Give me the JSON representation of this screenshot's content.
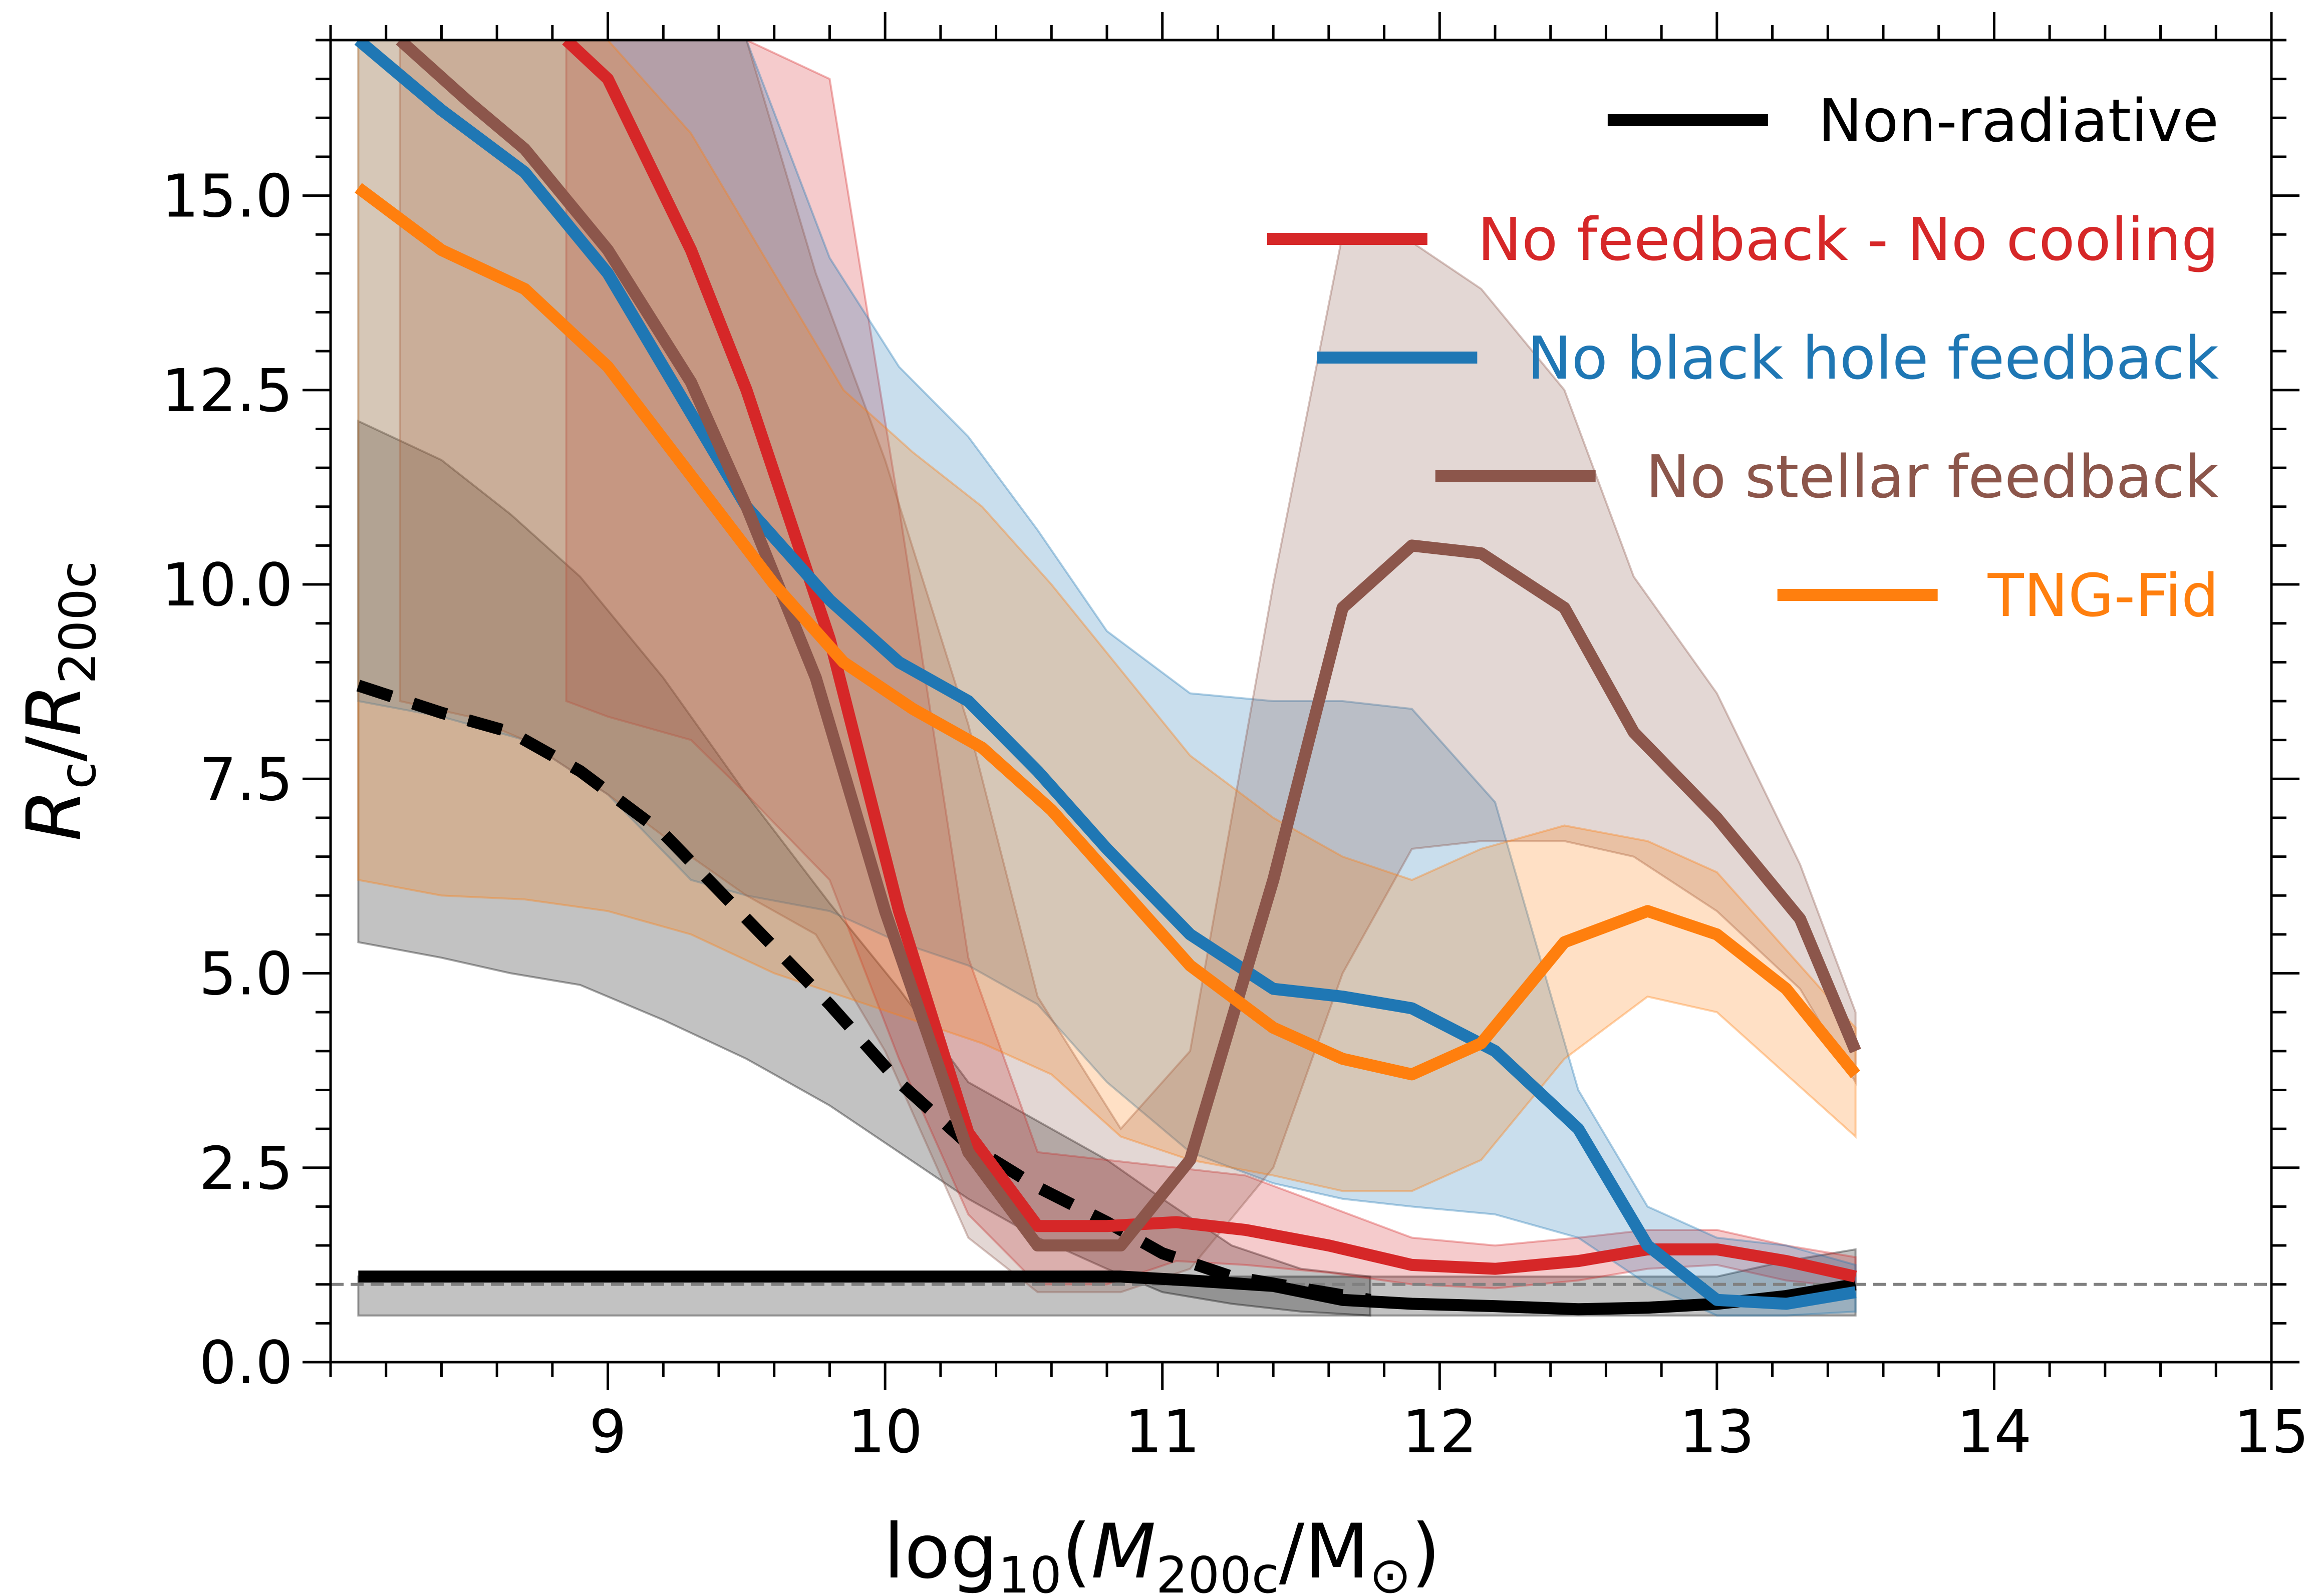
{
  "chart_data": {
    "type": "line",
    "xlabel": {
      "prefix": "log",
      "sub1": "10",
      "mid": "(",
      "var": "M",
      "sub2": "200c",
      "slash": "/M",
      "sub3": "⊙",
      "close": ")"
    },
    "ylabel": {
      "var1": "R",
      "sub1": "c",
      "slash": "/",
      "var2": "R",
      "sub2": "200c"
    },
    "xlim": [
      8.0,
      15.0
    ],
    "ylim": [
      0,
      17
    ],
    "xticks": [
      9,
      10,
      11,
      12,
      13,
      14,
      15
    ],
    "xtick_labels": [
      "9",
      "10",
      "11",
      "12",
      "13",
      "14",
      "15"
    ],
    "yticks": [
      0,
      2.5,
      5,
      7.5,
      10,
      12.5,
      15
    ],
    "ytick_labels": [
      "0.0",
      "2.5",
      "5.0",
      "7.5",
      "10.0",
      "12.5",
      "15.0"
    ],
    "reference_line": {
      "y": 1.0,
      "style": "dashed",
      "color": "#808080"
    },
    "legend_position": "top-right",
    "legend": [
      {
        "label": "Non-radiative",
        "color": "#000000"
      },
      {
        "label": "No feedback - No cooling",
        "color": "#d62728"
      },
      {
        "label": "No black hole feedback",
        "color": "#1f77b4"
      },
      {
        "label": "No stellar feedback",
        "color": "#8c564b"
      },
      {
        "label": "TNG-Fid",
        "color": "#ff7f0e"
      }
    ],
    "series": [
      {
        "color": "#000000",
        "x": [
          8.1,
          10.85,
          11.1,
          11.4,
          11.65,
          11.9,
          12.2,
          12.5,
          12.75,
          13.0,
          13.25,
          13.5
        ],
        "y": [
          1.1,
          1.1,
          1.05,
          0.98,
          0.8,
          0.75,
          0.72,
          0.68,
          0.7,
          0.75,
          0.85,
          1.0
        ],
        "lower": [
          0.6,
          0.6,
          0.6,
          0.6,
          0.6,
          0.6,
          0.6,
          0.6,
          0.6,
          0.6,
          0.6,
          0.6
        ],
        "upper": [
          1.1,
          1.1,
          1.1,
          1.1,
          1.1,
          1.1,
          1.1,
          1.1,
          1.1,
          1.1,
          1.3,
          1.45
        ]
      },
      {
        "color": "#000000",
        "dashed": true,
        "x": [
          8.1,
          8.4,
          8.65,
          8.9,
          9.2,
          9.5,
          9.8,
          10.05,
          10.3,
          10.55,
          10.8,
          11.0,
          11.25,
          11.5,
          11.75
        ],
        "y": [
          8.7,
          8.35,
          8.1,
          7.6,
          6.8,
          5.7,
          4.6,
          3.6,
          2.8,
          2.25,
          1.8,
          1.4,
          1.1,
          0.95,
          0.8
        ],
        "lower": [
          5.4,
          5.2,
          5.0,
          4.85,
          4.4,
          3.9,
          3.3,
          2.7,
          2.1,
          1.6,
          1.2,
          0.9,
          0.75,
          0.65,
          0.6
        ],
        "upper": [
          12.1,
          11.6,
          10.9,
          10.1,
          8.8,
          7.3,
          5.9,
          4.8,
          3.6,
          3.1,
          2.6,
          2.1,
          1.5,
          1.2,
          1.1
        ]
      },
      {
        "color": "#d62728",
        "x": [
          8.85,
          9.0,
          9.3,
          9.5,
          9.8,
          10.05,
          10.3,
          10.55,
          10.8,
          11.05,
          11.3,
          11.6,
          11.9,
          12.2,
          12.5,
          12.75,
          13.0,
          13.25,
          13.5
        ],
        "y": [
          17.0,
          16.5,
          14.3,
          12.5,
          9.3,
          5.8,
          2.95,
          1.75,
          1.75,
          1.8,
          1.7,
          1.5,
          1.25,
          1.2,
          1.3,
          1.45,
          1.45,
          1.3,
          1.1
        ],
        "lower": [
          8.5,
          8.3,
          8.0,
          7.3,
          6.2,
          3.9,
          1.9,
          1.0,
          1.0,
          1.3,
          1.25,
          1.15,
          1.0,
          0.95,
          1.05,
          1.2,
          1.25,
          1.05,
          0.95
        ],
        "upper": [
          17.0,
          17.0,
          17.0,
          17.0,
          16.5,
          11.0,
          5.2,
          2.7,
          2.6,
          2.5,
          2.4,
          2.0,
          1.6,
          1.5,
          1.6,
          1.7,
          1.7,
          1.5,
          1.35
        ]
      },
      {
        "color": "#1f77b4",
        "x": [
          8.1,
          8.4,
          8.7,
          9.0,
          9.3,
          9.5,
          9.8,
          10.05,
          10.3,
          10.55,
          10.8,
          11.1,
          11.4,
          11.65,
          11.9,
          12.2,
          12.5,
          12.75,
          13.0,
          13.25,
          13.5
        ],
        "y": [
          17.0,
          16.1,
          15.3,
          14.0,
          12.2,
          11.0,
          9.8,
          9.0,
          8.5,
          7.6,
          6.6,
          5.5,
          4.8,
          4.7,
          4.55,
          4.0,
          3.0,
          1.5,
          0.8,
          0.75,
          0.9
        ],
        "lower": [
          8.5,
          8.3,
          8.0,
          7.3,
          6.2,
          6.0,
          5.8,
          5.4,
          5.1,
          4.6,
          3.6,
          2.7,
          2.3,
          2.1,
          2.0,
          1.9,
          1.6,
          1.0,
          0.6,
          0.6,
          0.65
        ],
        "upper": [
          17.0,
          17.0,
          17.0,
          17.0,
          17.0,
          17.0,
          14.2,
          12.8,
          11.9,
          10.7,
          9.4,
          8.6,
          8.5,
          8.5,
          8.4,
          7.2,
          3.5,
          2.0,
          1.6,
          1.5,
          1.25
        ]
      },
      {
        "color": "#8c564b",
        "x": [
          8.25,
          8.5,
          8.7,
          9.0,
          9.3,
          9.5,
          9.75,
          10.0,
          10.3,
          10.55,
          10.85,
          11.1,
          11.4,
          11.65,
          11.9,
          12.15,
          12.45,
          12.7,
          13.0,
          13.3,
          13.5
        ],
        "y": [
          17.0,
          16.2,
          15.6,
          14.3,
          12.6,
          11.0,
          8.8,
          5.8,
          2.7,
          1.5,
          1.5,
          2.6,
          6.2,
          9.7,
          10.5,
          10.4,
          9.7,
          8.1,
          7.0,
          5.7,
          4.0
        ],
        "lower": [
          8.5,
          8.3,
          8.0,
          7.3,
          6.5,
          6.0,
          5.5,
          4.0,
          1.6,
          0.9,
          0.9,
          1.2,
          2.5,
          5.0,
          6.6,
          6.7,
          6.7,
          6.5,
          5.8,
          4.8,
          3.6
        ],
        "upper": [
          17.0,
          17.0,
          17.0,
          17.0,
          17.0,
          17.0,
          14.0,
          11.6,
          8.2,
          4.7,
          3.0,
          4.0,
          10.0,
          14.5,
          14.4,
          13.8,
          12.5,
          10.1,
          8.6,
          6.4,
          4.5
        ]
      },
      {
        "color": "#ff7f0e",
        "x": [
          8.1,
          8.4,
          8.7,
          9.0,
          9.3,
          9.6,
          9.85,
          10.1,
          10.35,
          10.6,
          10.85,
          11.1,
          11.4,
          11.65,
          11.9,
          12.15,
          12.45,
          12.75,
          13.0,
          13.25,
          13.5
        ],
        "y": [
          15.1,
          14.3,
          13.8,
          12.8,
          11.4,
          10.0,
          9.0,
          8.4,
          7.9,
          7.1,
          6.1,
          5.1,
          4.3,
          3.9,
          3.7,
          4.1,
          5.4,
          5.8,
          5.5,
          4.8,
          3.7
        ],
        "lower": [
          6.2,
          6.0,
          5.95,
          5.8,
          5.5,
          5.0,
          4.7,
          4.4,
          4.1,
          3.7,
          2.9,
          2.6,
          2.4,
          2.2,
          2.2,
          2.6,
          3.9,
          4.7,
          4.5,
          3.7,
          2.9
        ],
        "upper": [
          17.0,
          17.0,
          17.0,
          17.0,
          15.8,
          14.0,
          12.5,
          11.7,
          11.0,
          10.0,
          8.9,
          7.8,
          7.0,
          6.5,
          6.2,
          6.6,
          6.9,
          6.7,
          6.3,
          5.3,
          4.3
        ]
      }
    ]
  }
}
